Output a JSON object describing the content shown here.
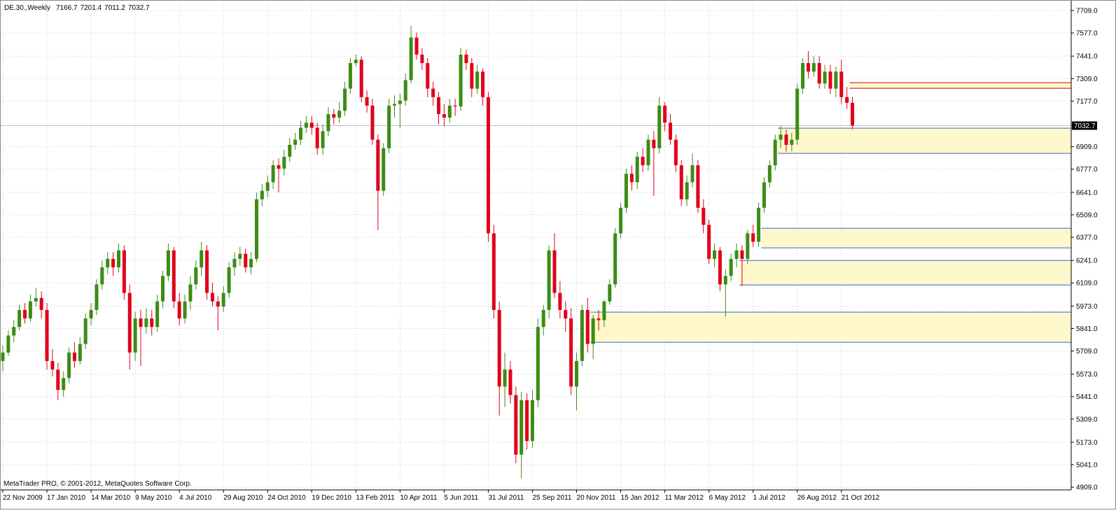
{
  "chart_data": {
    "type": "candlestick",
    "title": "DE.30.,Weekly",
    "footer": "MetaTrader PRO, © 2001-2012, MetaQuotes Software Corp.",
    "up_color": "#3c8c14",
    "down_color": "#e0001b",
    "grid": true,
    "ylim": [
      4893,
      7750
    ],
    "yticks": [
      {
        "value": 7709,
        "label": "7709.0"
      },
      {
        "value": 7577,
        "label": "7577.0"
      },
      {
        "value": 7441,
        "label": "7441.0"
      },
      {
        "value": 7309,
        "label": "7309.0"
      },
      {
        "value": 7177,
        "label": "7177.0"
      },
      {
        "value": 6909,
        "label": "6909.0"
      },
      {
        "value": 6777,
        "label": "6777.0"
      },
      {
        "value": 6641,
        "label": "6641.0"
      },
      {
        "value": 6509,
        "label": "6509.0"
      },
      {
        "value": 6377,
        "label": "6377.0"
      },
      {
        "value": 6241,
        "label": "6241.0"
      },
      {
        "value": 6109,
        "label": "6109.0"
      },
      {
        "value": 5973,
        "label": "5973.0"
      },
      {
        "value": 5841,
        "label": "5841.0"
      },
      {
        "value": 5709,
        "label": "5709.0"
      },
      {
        "value": 5573,
        "label": "5573.0"
      },
      {
        "value": 5441,
        "label": "5441.0"
      },
      {
        "value": 5309,
        "label": "5309.0"
      },
      {
        "value": 5173,
        "label": "5173.0"
      },
      {
        "value": 5041,
        "label": "5041.0"
      },
      {
        "value": 4909,
        "label": "4909.0"
      }
    ],
    "categories": [
      "22 Nov 2009",
      null,
      null,
      null,
      null,
      null,
      null,
      null,
      "17 Jan 2010",
      null,
      null,
      null,
      null,
      null,
      null,
      null,
      "14 Mar 2010",
      null,
      null,
      null,
      null,
      null,
      null,
      null,
      "9 May 2010",
      null,
      null,
      null,
      null,
      null,
      null,
      null,
      "4 Jul 2010",
      null,
      null,
      null,
      null,
      null,
      null,
      null,
      "29 Aug 2010",
      null,
      null,
      null,
      null,
      null,
      null,
      null,
      "24 Oct 2010",
      null,
      null,
      null,
      null,
      null,
      null,
      null,
      "19 Dec 2010",
      null,
      null,
      null,
      null,
      null,
      null,
      null,
      "13 Feb 2011",
      null,
      null,
      null,
      null,
      null,
      null,
      null,
      "10 Apr 2011",
      null,
      null,
      null,
      null,
      null,
      null,
      null,
      "5 Jun 2011",
      null,
      null,
      null,
      null,
      null,
      null,
      null,
      "31 Jul 2011",
      null,
      null,
      null,
      null,
      null,
      null,
      null,
      "25 Sep 2011",
      null,
      null,
      null,
      null,
      null,
      null,
      null,
      "20 Nov 2011",
      null,
      null,
      null,
      null,
      null,
      null,
      null,
      "15 Jan 2012",
      null,
      null,
      null,
      null,
      null,
      null,
      null,
      "11 Mar 2012",
      null,
      null,
      null,
      null,
      null,
      null,
      null,
      "6 May 2012",
      null,
      null,
      null,
      null,
      null,
      null,
      null,
      "1 Jul 2012",
      null,
      null,
      null,
      null,
      null,
      null,
      null,
      "26 Aug 2012",
      null,
      null,
      null,
      null,
      null,
      null,
      null,
      "21 Oct 2012",
      null,
      null
    ],
    "ohlc": [
      [
        5650,
        5740,
        5590,
        5700
      ],
      [
        5700,
        5830,
        5680,
        5800
      ],
      [
        5800,
        5890,
        5760,
        5850
      ],
      [
        5850,
        5980,
        5830,
        5950
      ],
      [
        5950,
        5990,
        5870,
        5900
      ],
      [
        5900,
        6040,
        5880,
        6000
      ],
      [
        6000,
        6080,
        5970,
        6020
      ],
      [
        6020,
        6060,
        5900,
        5950
      ],
      [
        5950,
        5990,
        5600,
        5650
      ],
      [
        5650,
        5720,
        5560,
        5600
      ],
      [
        5600,
        5640,
        5420,
        5480
      ],
      [
        5480,
        5590,
        5440,
        5550
      ],
      [
        5550,
        5730,
        5520,
        5700
      ],
      [
        5700,
        5760,
        5610,
        5650
      ],
      [
        5650,
        5790,
        5630,
        5750
      ],
      [
        5750,
        5930,
        5720,
        5900
      ],
      [
        5900,
        5990,
        5860,
        5950
      ],
      [
        5950,
        6130,
        5920,
        6100
      ],
      [
        6100,
        6240,
        6070,
        6200
      ],
      [
        6200,
        6290,
        6160,
        6250
      ],
      [
        6250,
        6290,
        6150,
        6200
      ],
      [
        6200,
        6340,
        6170,
        6300
      ],
      [
        6300,
        6330,
        6010,
        6050
      ],
      [
        6050,
        6100,
        5600,
        5700
      ],
      [
        5700,
        5940,
        5650,
        5900
      ],
      [
        5900,
        5950,
        5620,
        5850
      ],
      [
        5850,
        5960,
        5810,
        5900
      ],
      [
        5900,
        5950,
        5800,
        5850
      ],
      [
        5850,
        6040,
        5820,
        6000
      ],
      [
        6000,
        6180,
        5960,
        6150
      ],
      [
        6150,
        6340,
        6120,
        6300
      ],
      [
        6300,
        6320,
        5960,
        6000
      ],
      [
        6000,
        6050,
        5860,
        5900
      ],
      [
        5900,
        6040,
        5870,
        6000
      ],
      [
        6000,
        6150,
        5950,
        6100
      ],
      [
        6100,
        6240,
        6070,
        6200
      ],
      [
        6200,
        6350,
        6150,
        6300
      ],
      [
        6300,
        6330,
        6010,
        6050
      ],
      [
        6050,
        6110,
        5970,
        6000
      ],
      [
        6000,
        6030,
        5830,
        5970
      ],
      [
        5970,
        6090,
        5940,
        6050
      ],
      [
        6050,
        6230,
        6020,
        6200
      ],
      [
        6200,
        6290,
        6150,
        6250
      ],
      [
        6250,
        6320,
        6210,
        6280
      ],
      [
        6280,
        6310,
        6170,
        6200
      ],
      [
        6200,
        6290,
        6160,
        6250
      ],
      [
        6250,
        6640,
        6230,
        6600
      ],
      [
        6600,
        6690,
        6560,
        6650
      ],
      [
        6650,
        6740,
        6610,
        6700
      ],
      [
        6700,
        6830,
        6660,
        6800
      ],
      [
        6800,
        6840,
        6640,
        6780
      ],
      [
        6780,
        6890,
        6740,
        6850
      ],
      [
        6850,
        6960,
        6820,
        6920
      ],
      [
        6920,
        6990,
        6890,
        6950
      ],
      [
        6950,
        7060,
        6920,
        7020
      ],
      [
        7020,
        7090,
        6990,
        7050
      ],
      [
        7050,
        7090,
        6980,
        7020
      ],
      [
        7020,
        7050,
        6860,
        6900
      ],
      [
        6900,
        7040,
        6860,
        7000
      ],
      [
        7000,
        7140,
        6970,
        7100
      ],
      [
        7100,
        7130,
        7040,
        7080
      ],
      [
        7080,
        7170,
        7050,
        7120
      ],
      [
        7120,
        7290,
        7090,
        7250
      ],
      [
        7250,
        7430,
        7220,
        7400
      ],
      [
        7400,
        7450,
        7380,
        7420
      ],
      [
        7420,
        7440,
        7170,
        7200
      ],
      [
        7200,
        7240,
        7110,
        7150
      ],
      [
        7150,
        7190,
        6920,
        6950
      ],
      [
        6950,
        6980,
        6420,
        6650
      ],
      [
        6650,
        6930,
        6620,
        6900
      ],
      [
        6900,
        7190,
        6870,
        7150
      ],
      [
        7150,
        7210,
        7080,
        7160
      ],
      [
        7160,
        7220,
        7020,
        7180
      ],
      [
        7180,
        7340,
        7150,
        7300
      ],
      [
        7300,
        7620,
        7280,
        7550
      ],
      [
        7550,
        7580,
        7420,
        7450
      ],
      [
        7450,
        7490,
        7360,
        7400
      ],
      [
        7400,
        7430,
        7200,
        7250
      ],
      [
        7250,
        7290,
        7150,
        7200
      ],
      [
        7200,
        7230,
        7040,
        7100
      ],
      [
        7100,
        7160,
        7030,
        7080
      ],
      [
        7080,
        7190,
        7050,
        7150
      ],
      [
        7150,
        7190,
        7090,
        7145
      ],
      [
        7145,
        7490,
        7120,
        7450
      ],
      [
        7450,
        7480,
        7360,
        7400
      ],
      [
        7400,
        7430,
        7200,
        7250
      ],
      [
        7250,
        7390,
        7220,
        7350
      ],
      [
        7350,
        7370,
        7150,
        7200
      ],
      [
        7200,
        7230,
        6350,
        6400
      ],
      [
        6400,
        6450,
        5900,
        5950
      ],
      [
        5950,
        6000,
        5330,
        5500
      ],
      [
        5500,
        5700,
        5380,
        5600
      ],
      [
        5600,
        5650,
        5400,
        5450
      ],
      [
        5450,
        5500,
        5050,
        5100
      ],
      [
        5100,
        5470,
        4960,
        5420
      ],
      [
        5420,
        5460,
        5130,
        5180
      ],
      [
        5180,
        5480,
        5140,
        5420
      ],
      [
        5420,
        5900,
        5380,
        5850
      ],
      [
        5850,
        5980,
        5800,
        5950
      ],
      [
        5950,
        6330,
        5900,
        6300
      ],
      [
        6300,
        6400,
        6020,
        6050
      ],
      [
        6050,
        6120,
        5900,
        5950
      ],
      [
        5950,
        6000,
        5820,
        5900
      ],
      [
        5900,
        5960,
        5450,
        5500
      ],
      [
        5500,
        5700,
        5360,
        5650
      ],
      [
        5650,
        5980,
        5620,
        5950
      ],
      [
        5950,
        6020,
        5700,
        5750
      ],
      [
        5750,
        5920,
        5660,
        5900
      ],
      [
        5900,
        5950,
        5830,
        5890
      ],
      [
        5890,
        6010,
        5850,
        6000
      ],
      [
        6000,
        6130,
        5980,
        6100
      ],
      [
        6100,
        6430,
        6080,
        6400
      ],
      [
        6400,
        6580,
        6370,
        6550
      ],
      [
        6550,
        6780,
        6520,
        6750
      ],
      [
        6750,
        6800,
        6650,
        6700
      ],
      [
        6700,
        6880,
        6660,
        6850
      ],
      [
        6850,
        6900,
        6760,
        6800
      ],
      [
        6800,
        6980,
        6770,
        6950
      ],
      [
        6950,
        7000,
        6620,
        6900
      ],
      [
        6900,
        7200,
        6870,
        7150
      ],
      [
        7150,
        7170,
        7000,
        7050
      ],
      [
        7050,
        7100,
        6920,
        6950
      ],
      [
        6950,
        6980,
        6760,
        6800
      ],
      [
        6800,
        6830,
        6560,
        6600
      ],
      [
        6600,
        6740,
        6560,
        6700
      ],
      [
        6700,
        6870,
        6670,
        6800
      ],
      [
        6800,
        6830,
        6520,
        6550
      ],
      [
        6550,
        6600,
        6400,
        6450
      ],
      [
        6450,
        6480,
        6220,
        6250
      ],
      [
        6250,
        6340,
        6200,
        6300
      ],
      [
        6300,
        6320,
        6060,
        6100
      ],
      [
        6100,
        6190,
        5910,
        6150
      ],
      [
        6150,
        6280,
        6120,
        6250
      ],
      [
        6250,
        6340,
        6200,
        6300
      ],
      [
        6300,
        6330,
        6090,
        6250
      ],
      [
        6250,
        6420,
        6220,
        6400
      ],
      [
        6400,
        6450,
        6320,
        6350
      ],
      [
        6350,
        6580,
        6320,
        6550
      ],
      [
        6550,
        6730,
        6520,
        6700
      ],
      [
        6700,
        6830,
        6670,
        6800
      ],
      [
        6800,
        6980,
        6770,
        6950
      ],
      [
        6950,
        7030,
        6900,
        6980
      ],
      [
        6980,
        7010,
        6880,
        6920
      ],
      [
        6920,
        6990,
        6880,
        6950
      ],
      [
        6950,
        7280,
        6920,
        7250
      ],
      [
        7250,
        7430,
        7220,
        7400
      ],
      [
        7400,
        7470,
        7310,
        7350
      ],
      [
        7350,
        7440,
        7320,
        7400
      ],
      [
        7400,
        7440,
        7250,
        7280
      ],
      [
        7280,
        7390,
        7250,
        7350
      ],
      [
        7350,
        7390,
        7220,
        7250
      ],
      [
        7250,
        7380,
        7200,
        7350
      ],
      [
        7350,
        7420,
        7160,
        7200
      ],
      [
        7200,
        7260,
        7130,
        7166.7
      ],
      [
        7166.7,
        7201.4,
        7011.2,
        7032.7
      ]
    ],
    "zones": [
      {
        "top": 7285,
        "bottom": 7252,
        "from": 154,
        "line_color": "#cc0000"
      },
      {
        "top": 7018,
        "bottom": 6870,
        "from": 141,
        "line_color": "#3366cc"
      },
      {
        "top": 6430,
        "bottom": 6315,
        "from": 138,
        "line_color": "#3366cc"
      },
      {
        "top": 6241,
        "bottom": 6097,
        "from": 134,
        "line_color": "#3366cc"
      },
      {
        "top": 5937,
        "bottom": 5760,
        "from": 107,
        "line_color": "#3366cc"
      }
    ]
  }
}
